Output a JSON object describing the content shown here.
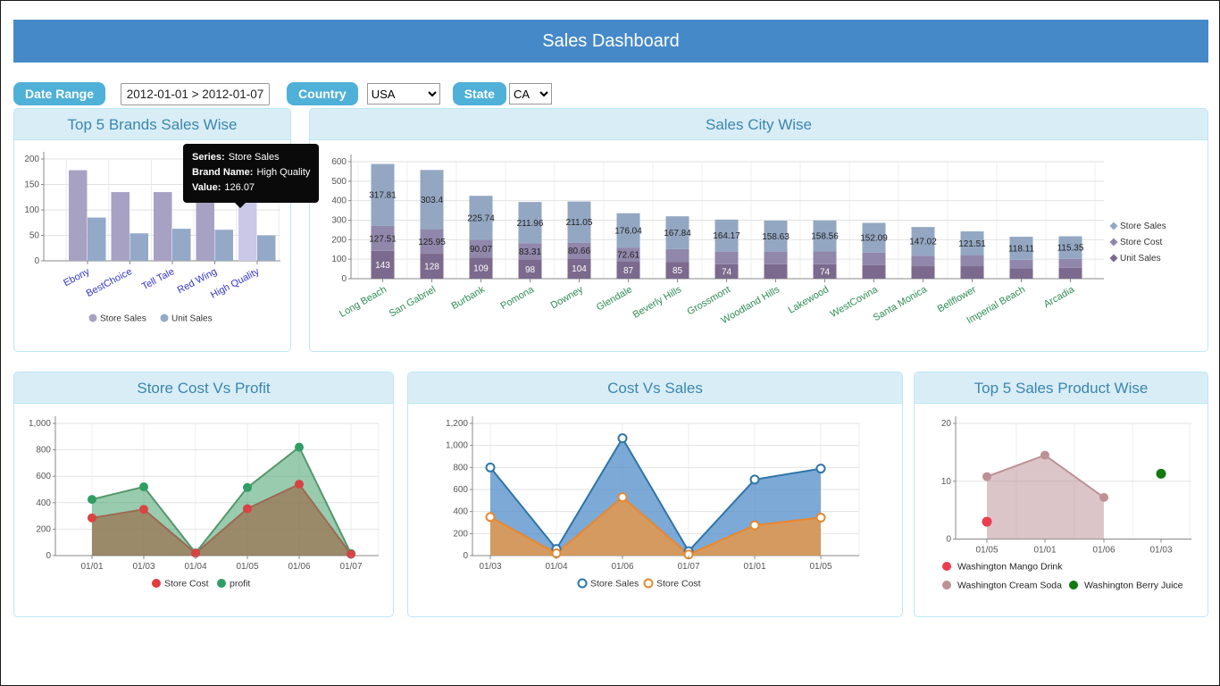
{
  "header": {
    "title": "Sales Dashboard"
  },
  "filters": {
    "date_range_label": "Date Range",
    "date_range_value": "2012-01-01 > 2012-01-07",
    "country_label": "Country",
    "country_value": "USA",
    "state_label": "State",
    "state_value": "CA"
  },
  "colors": {
    "header_bg": "#4689c9",
    "filter_button_bg": "#4fb0d8",
    "panel_border": "#bce8f1",
    "panel_header_bg": "#d9edf7",
    "panel_header_text": "#3a87ad"
  },
  "chart_data": [
    {
      "type": "bar",
      "title": "Top 5 Brands Sales Wise",
      "categories": [
        "Ebony",
        "BestChoice",
        "Tell Tale",
        "Red Wing",
        "High Quality"
      ],
      "series": [
        {
          "name": "Store Sales",
          "color": "#a7a2c3",
          "values": [
            178,
            135,
            135,
            130,
            126.07
          ]
        },
        {
          "name": "Unit Sales",
          "color": "#93a9c7",
          "values": [
            85,
            54,
            63,
            61,
            50
          ]
        }
      ],
      "ylim": [
        0,
        200
      ],
      "yticks": [
        0,
        50,
        100,
        150,
        200
      ],
      "xlabel_color": "#3434c8",
      "highlight": {
        "series": 0,
        "index": 4
      },
      "highlight_color": "#cbc7e6",
      "legend_position": "bottom",
      "tooltip": {
        "rows": [
          {
            "label": "Series:",
            "value": "Store Sales"
          },
          {
            "label": "Brand Name:",
            "value": "High Quality"
          },
          {
            "label": "Value:",
            "value": "126.07"
          }
        ]
      }
    },
    {
      "type": "stacked-bar",
      "title": "Sales City Wise",
      "categories": [
        "Long Beach",
        "San Gabriel",
        "Burbank",
        "Pomona",
        "Downey",
        "Glendale",
        "Beverly Hills",
        "Grossmont",
        "Woodland Hills",
        "Lakewood",
        "WestCovina",
        "Santa Monica",
        "Bellflower",
        "Imperial Beach",
        "Arcadia"
      ],
      "series": [
        {
          "name": "Unit Sales",
          "color": "#7b6a8d",
          "label_color": "#ffffff",
          "values": [
            143,
            128,
            109,
            98,
            104,
            87,
            85,
            74,
            74,
            74,
            70,
            64,
            64,
            54,
            56
          ],
          "labels": [
            "143",
            "128",
            "109",
            "98",
            "104",
            "87",
            "85",
            "74",
            "",
            "74",
            "",
            "",
            "",
            "",
            ""
          ]
        },
        {
          "name": "Store Cost",
          "color": "#9187ab",
          "label_color": "#222222",
          "values": [
            127.51,
            125.95,
            90.07,
            83.31,
            80.66,
            72.61,
            67,
            65,
            65,
            66,
            64,
            54,
            57,
            43,
            46
          ],
          "labels": [
            "127.51",
            "125.95",
            "90.07",
            "83.31",
            "80.66",
            "72.61",
            "",
            "",
            "",
            "",
            "",
            "",
            "",
            "",
            ""
          ]
        },
        {
          "name": "Store Sales",
          "color": "#93a7c2",
          "label_color": "#222222",
          "values": [
            317.81,
            303.4,
            225.74,
            211.96,
            211.05,
            176.04,
            167.84,
            164.17,
            158.63,
            158.56,
            152.09,
            147.02,
            121.51,
            118.11,
            115.35
          ],
          "labels": [
            "317.81",
            "303.4",
            "225.74",
            "211.96",
            "211.05",
            "176.04",
            "167.84",
            "164.17",
            "158.63",
            "158.56",
            "152.09",
            "147.02",
            "121.51",
            "118.11",
            "115.35"
          ]
        }
      ],
      "ylim": [
        0,
        600
      ],
      "yticks": [
        0,
        100,
        200,
        300,
        400,
        500,
        600
      ],
      "xlabel_color": "#2e8b57",
      "legend_position": "right"
    },
    {
      "type": "area",
      "title": "Store Cost Vs Profit",
      "x": [
        "01/01",
        "01/03",
        "01/04",
        "01/05",
        "01/06",
        "01/07"
      ],
      "series": [
        {
          "name": "profit",
          "color": "#55976b",
          "fill": "rgba(70,160,110,0.55)",
          "marker": "filled",
          "marker_color": "#2f9e64",
          "values": [
            425,
            520,
            20,
            515,
            820,
            15
          ]
        },
        {
          "name": "Store Cost",
          "color": "#9b6b52",
          "fill": "rgba(155,95,60,0.60)",
          "marker": "filled",
          "marker_color": "#d84343",
          "values": [
            285,
            350,
            18,
            355,
            540,
            10
          ]
        }
      ],
      "ylim": [
        0,
        1000
      ],
      "yticks": [
        0,
        200,
        400,
        600,
        800,
        1000
      ],
      "ytick_labels": [
        "0",
        "200",
        "400",
        "600",
        "800",
        "1,000"
      ],
      "legend": [
        {
          "label": "Store Cost",
          "color": "#e23b41",
          "marker": "filled"
        },
        {
          "label": "profit",
          "color": "#2f9e64",
          "marker": "filled"
        }
      ]
    },
    {
      "type": "area",
      "title": "Cost Vs Sales",
      "x": [
        "01/03",
        "01/04",
        "01/06",
        "01/07",
        "01/01",
        "01/05"
      ],
      "series": [
        {
          "name": "Store Sales",
          "color": "#2e75a8",
          "fill": "rgba(82,140,200,0.75)",
          "marker": "open",
          "values": [
            800,
            60,
            1065,
            40,
            690,
            790
          ]
        },
        {
          "name": "Store Cost",
          "color": "#e8882e",
          "fill": "rgba(228,152,74,0.85)",
          "marker": "open",
          "values": [
            350,
            20,
            530,
            10,
            275,
            345
          ]
        }
      ],
      "ylim": [
        0,
        1200
      ],
      "yticks": [
        0,
        200,
        400,
        600,
        800,
        1000,
        1200
      ],
      "ytick_labels": [
        "0",
        "200",
        "400",
        "600",
        "800",
        "1,000",
        "1,200"
      ],
      "legend": [
        {
          "label": "Store Sales",
          "color": "#2e75a8",
          "marker": "open"
        },
        {
          "label": "Store Cost",
          "color": "#e8882e",
          "marker": "open"
        }
      ]
    },
    {
      "type": "mixed",
      "title": "Top 5 Sales Product Wise",
      "x": [
        "01/05",
        "01/01",
        "01/06",
        "01/03"
      ],
      "series": [
        {
          "name": "Washington Cream Soda",
          "kind": "area",
          "color": "#bc9195",
          "fill": "rgba(192,150,155,0.55)",
          "points": [
            [
              0,
              10.8
            ],
            [
              1,
              14.5
            ],
            [
              2,
              7.2
            ]
          ]
        },
        {
          "name": "Washington Mango Drink",
          "kind": "scatter",
          "color": "#ea3d4e",
          "points": [
            [
              0,
              3
            ]
          ]
        },
        {
          "name": "Washington Berry Juice",
          "kind": "scatter",
          "color": "#117a11",
          "points": [
            [
              3,
              11.3
            ]
          ]
        }
      ],
      "ylim": [
        0,
        20
      ],
      "yticks": [
        0,
        10,
        20
      ],
      "ytick_labels": [
        "0",
        "10",
        "20"
      ]
    }
  ]
}
